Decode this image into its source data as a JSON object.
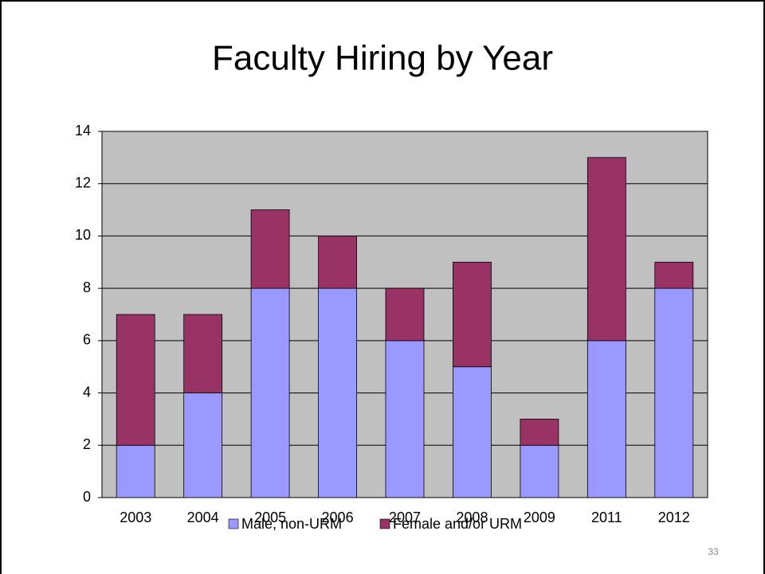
{
  "title": "Faculty Hiring by Year",
  "slide_number": "33",
  "chart_data": {
    "type": "stacked_bar",
    "categories": [
      "2003",
      "2004",
      "2005",
      "2006",
      "2007",
      "2008",
      "2009",
      "2011",
      "2012"
    ],
    "series": [
      {
        "name": "Male, non-URM",
        "color": "#9999ff",
        "values": [
          2,
          4,
          8,
          8,
          6,
          5,
          2,
          6,
          8
        ]
      },
      {
        "name": "Female and/or URM",
        "color": "#993366",
        "values": [
          5,
          3,
          3,
          2,
          2,
          4,
          1,
          7,
          1
        ]
      }
    ],
    "ylim": [
      0,
      14
    ],
    "yticks": [
      0,
      2,
      4,
      6,
      8,
      10,
      12,
      14
    ],
    "grid": true,
    "plot_background": "#c0c0c0",
    "legend": "bottom"
  }
}
